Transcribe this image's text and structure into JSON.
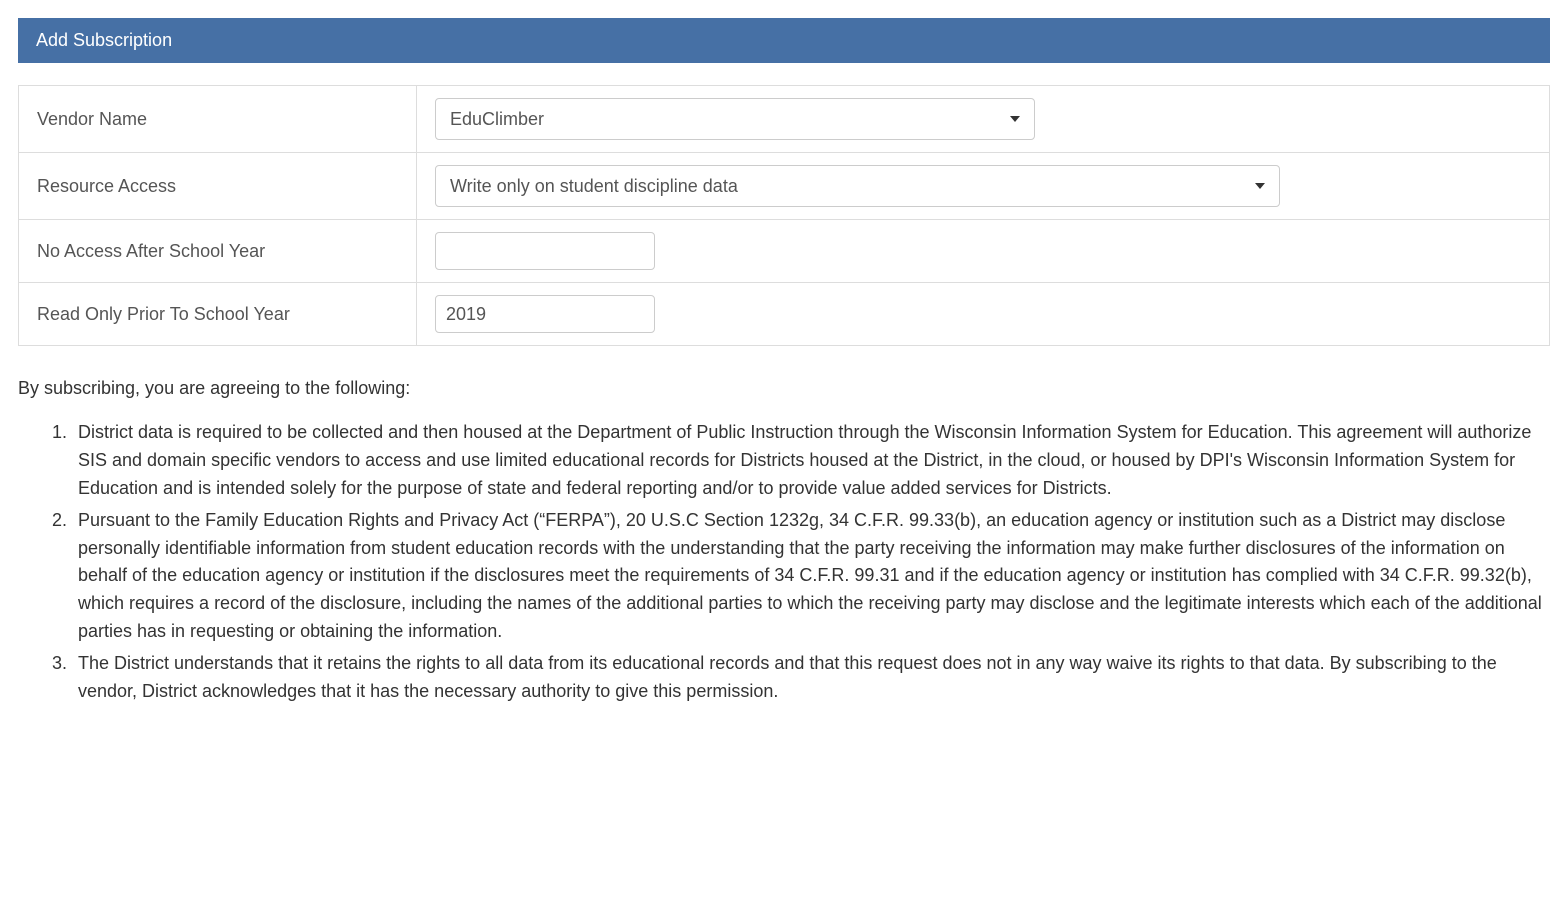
{
  "header": {
    "title": "Add Subscription",
    "background_color": "#4670a5",
    "text_color": "#ffffff"
  },
  "form": {
    "rows": [
      {
        "label": "Vendor Name",
        "type": "select",
        "value": "EduClimber",
        "width_class": "select-vendor"
      },
      {
        "label": "Resource Access",
        "type": "select",
        "value": "Write only on student discipline data",
        "width_class": "select-resource"
      },
      {
        "label": "No Access After School Year",
        "type": "text",
        "value": ""
      },
      {
        "label": "Read Only Prior To School Year",
        "type": "text",
        "value": "2019"
      }
    ],
    "border_color": "#dddddd",
    "input_border_color": "#cccccc"
  },
  "agreement": {
    "intro": "By subscribing, you are agreeing to the following:",
    "items": [
      "District data is required to be collected and then housed at the Department of Public Instruction through the Wisconsin Information System for Education.  This agreement will authorize  SIS and domain specific vendors to access and use limited educational records for Districts housed at the District, in the cloud, or housed by DPI's Wisconsin Information System for Education and is intended solely for the purpose of state and federal reporting and/or to provide value added services for Districts.",
      "Pursuant to the Family Education Rights and Privacy Act (“FERPA”), 20 U.S.C Section 1232g, 34 C.F.R. 99.33(b), an education agency or institution such as a District may disclose personally identifiable information from student education records with the understanding that the party receiving the information may make further disclosures of the information on behalf of the education agency or institution if the disclosures meet the requirements of 34 C.F.R. 99.31 and if the education agency or institution has complied with 34 C.F.R. 99.32(b), which requires a record of the disclosure, including the names of the additional parties to which the receiving party may disclose and the legitimate interests which each of the additional parties has in requesting or obtaining the information.",
      "The District understands that it retains the rights to all data from its educational records and that this request does not in any way waive its rights to that data. By subscribing to the vendor, District acknowledges that it has the necessary authority to give this permission."
    ]
  },
  "colors": {
    "text_primary": "#333333",
    "text_secondary": "#555555",
    "background": "#ffffff"
  }
}
